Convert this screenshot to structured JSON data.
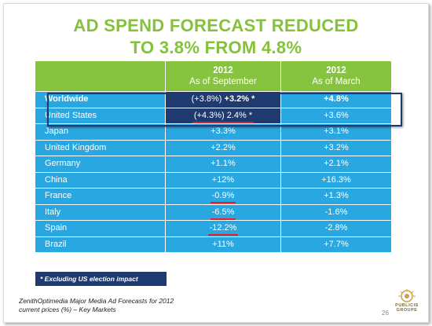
{
  "title": {
    "line1": "AD SPEND FORECAST REDUCED",
    "line2": "TO 3.8% FROM 4.8%"
  },
  "table": {
    "headers": [
      {
        "year": "2012",
        "subtitle": "As of September"
      },
      {
        "year": "2012",
        "subtitle": "As of March"
      }
    ],
    "rows": [
      {
        "market": "Worldwide",
        "sep_prev": "(+3.8%)",
        "sep": "+3.2% *",
        "mar": "+4.8%"
      },
      {
        "market": "United States",
        "sep_prev": "(+4.3%)",
        "sep": "2.4% *",
        "mar": "+3.6%"
      },
      {
        "market": "Japan",
        "sep": "+3.3%",
        "mar": "+3.1%"
      },
      {
        "market": "United Kingdom",
        "sep": "+2.2%",
        "mar": "+3.2%"
      },
      {
        "market": "Germany",
        "sep": "+1.1%",
        "mar": "+2.1%"
      },
      {
        "market": "China",
        "sep": "+12%",
        "mar": "+16.3%"
      },
      {
        "market": "France",
        "sep": "-0.9%",
        "mar": "+1.3%"
      },
      {
        "market": "Italy",
        "sep": "-6.5%",
        "mar": "-1.6%"
      },
      {
        "market": "Spain",
        "sep": "-12.2%",
        "mar": "-2.8%"
      },
      {
        "market": "Brazil",
        "sep": "+11%",
        "mar": "+7.7%"
      }
    ]
  },
  "footnote": "* Excluding US election impact",
  "source": {
    "line1": "ZenithOptimedia Major Media  Ad Forecasts for 2012",
    "line2": "current prices (%) – Key Markets"
  },
  "page_number": "26",
  "logo": {
    "line1": "PUBLICIS",
    "line2": "GROUPE",
    "icon": "lion-icon"
  },
  "colors": {
    "title": "#84c23a",
    "header_bg": "#86c43f",
    "row_bg": "#29a7e1",
    "highlight": "#1f3a6e",
    "underline": "#e41f26"
  }
}
